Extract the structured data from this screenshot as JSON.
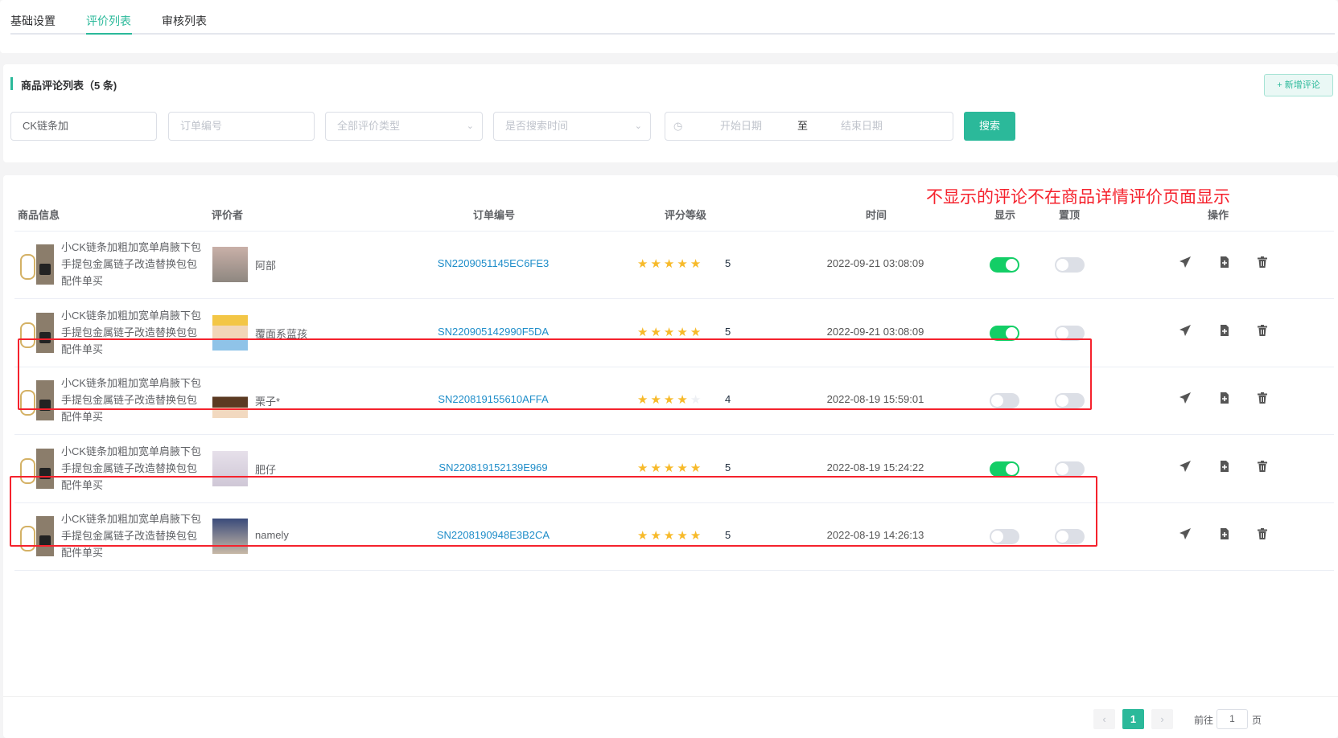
{
  "tabs": [
    {
      "label": "基础设置",
      "active": false
    },
    {
      "label": "评价列表",
      "active": true
    },
    {
      "label": "审核列表",
      "active": false
    }
  ],
  "section": {
    "title": "商品评论列表（5 条)",
    "add_button": "+ 新增评论"
  },
  "filters": {
    "keyword_value": "CK链条加",
    "order_placeholder": "订单编号",
    "type_placeholder": "全部评价类型",
    "time_placeholder": "是否搜索时间",
    "start_placeholder": "开始日期",
    "range_sep": "至",
    "end_placeholder": "结束日期",
    "search_button": "搜索"
  },
  "annotation": "不显示的评论不在商品详情评价页面显示",
  "columns": [
    "商品信息",
    "评价者",
    "订单编号",
    "评分等级",
    "时间",
    "显示",
    "置顶",
    "操作"
  ],
  "rows": [
    {
      "product": "小CK链条加粗加宽单肩腋下包手提包金属链子改造替换包包配件单买",
      "reviewer": "阿部",
      "order": "SN2209051145EC6FE3",
      "rating": 5,
      "time": "2022-09-21 03:08:09",
      "show": true,
      "pinned": false,
      "highlighted": false
    },
    {
      "product": "小CK链条加粗加宽单肩腋下包手提包金属链子改造替换包包配件单买",
      "reviewer": "覆面系蓝孩",
      "order": "SN220905142990F5DA",
      "rating": 5,
      "time": "2022-09-21 03:08:09",
      "show": true,
      "pinned": false,
      "highlighted": false
    },
    {
      "product": "小CK链条加粗加宽单肩腋下包手提包金属链子改造替换包包配件单买",
      "reviewer": "栗子*",
      "order": "SN220819155610AFFA",
      "rating": 4,
      "time": "2022-08-19 15:59:01",
      "show": false,
      "pinned": false,
      "highlighted": true
    },
    {
      "product": "小CK链条加粗加宽单肩腋下包手提包金属链子改造替换包包配件单买",
      "reviewer": "肥仔",
      "order": "SN220819152139E969",
      "rating": 5,
      "time": "2022-08-19 15:24:22",
      "show": true,
      "pinned": false,
      "highlighted": false
    },
    {
      "product": "小CK链条加粗加宽单肩腋下包手提包金属链子改造替换包包配件单买",
      "reviewer": "namely",
      "order": "SN2208190948E3B2CA",
      "rating": 5,
      "time": "2022-08-19 14:26:13",
      "show": false,
      "pinned": false,
      "highlighted": true
    }
  ],
  "row_icons": [
    "send-icon",
    "file-add-icon",
    "trash-icon"
  ],
  "pagination": {
    "current": "1",
    "goto_label": "前往",
    "goto_value": "1",
    "page_suffix": "页"
  },
  "colors": {
    "accent": "#2bb99a",
    "switch_on": "#13ce66",
    "link": "#1e8dc9",
    "annotation": "#f5222d",
    "star": "#f7ba2a"
  }
}
